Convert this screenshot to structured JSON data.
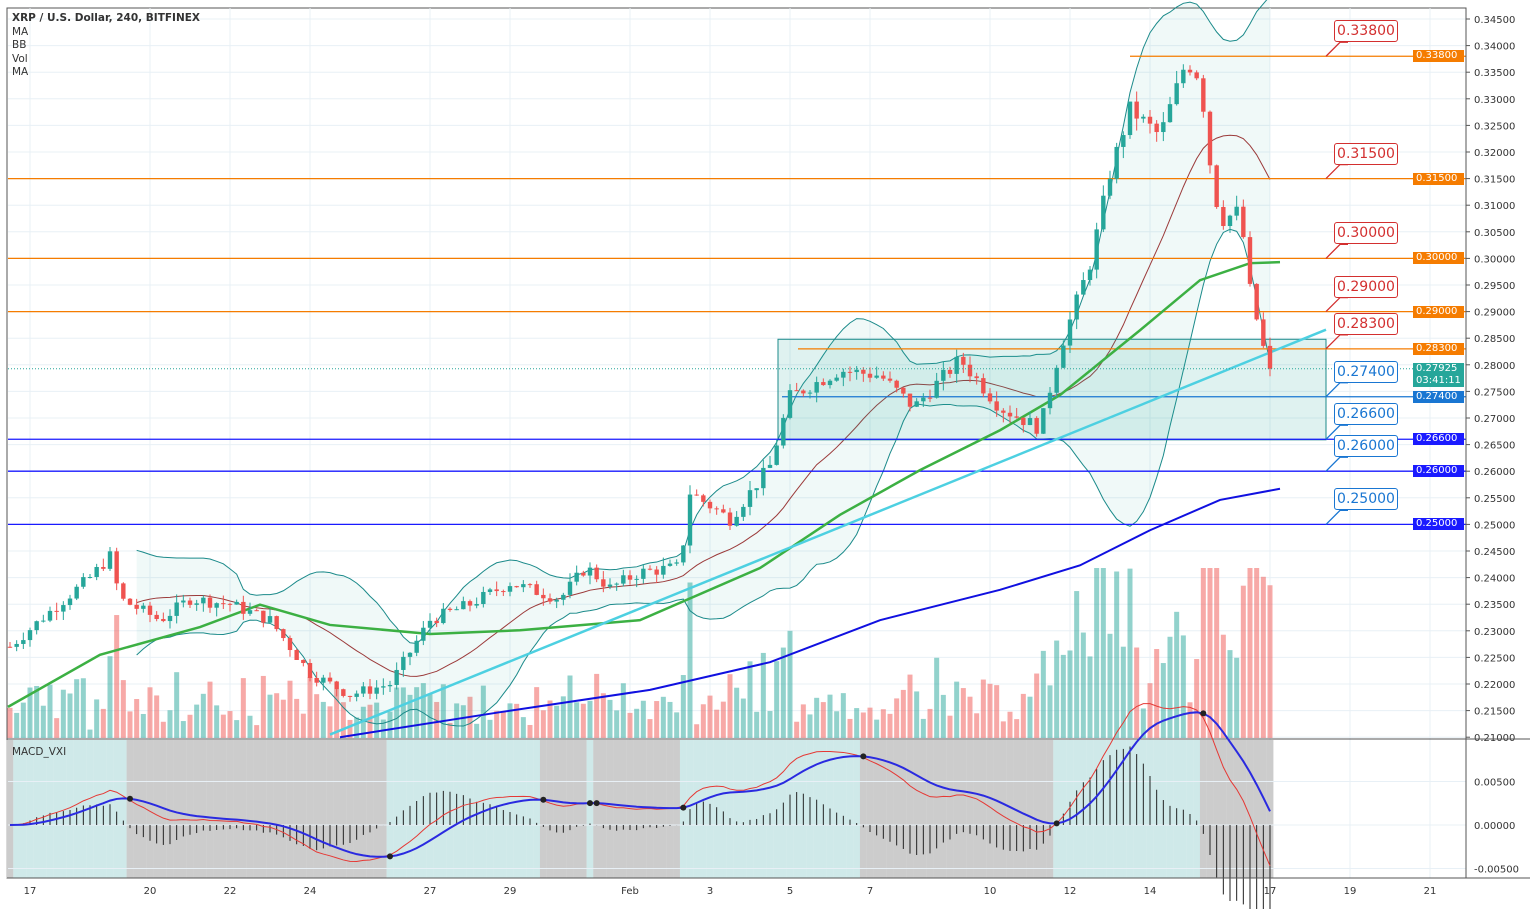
{
  "legend": {
    "title": "XRP / U.S. Dollar, 240, BITFINEX",
    "items": [
      "MA",
      "BB",
      "Vol",
      "MA"
    ]
  },
  "macd_title": "MACD_VXI",
  "colors": {
    "up": "#26a69a",
    "down": "#ef5350",
    "orange": "#f57c00",
    "blue": "#1976d2",
    "navy": "#1a1aff",
    "ma50": "#3cb043",
    "ma200": "#1010e0",
    "trend": "#4dd0e1",
    "bb": "#1b8a8a"
  },
  "levels": [
    {
      "label": "0.33800",
      "value": 0.338,
      "kind": "orange",
      "fromDay": 27.5
    },
    {
      "label": "0.31500",
      "value": 0.315,
      "kind": "orange",
      "fromDay": -1
    },
    {
      "label": "0.30000",
      "value": 0.3,
      "kind": "orange",
      "fromDay": -1
    },
    {
      "label": "0.29000",
      "value": 0.29,
      "kind": "orange",
      "fromDay": -1
    },
    {
      "label": "0.28300",
      "value": 0.283,
      "kind": "orange",
      "fromDay": 19.2
    },
    {
      "label": "0.27400",
      "value": 0.274,
      "kind": "blue",
      "fromDay": 18.8
    },
    {
      "label": "0.26600",
      "value": 0.266,
      "kind": "navy",
      "fromDay": -1
    },
    {
      "label": "0.26000",
      "value": 0.26,
      "kind": "navy",
      "fromDay": -1
    },
    {
      "label": "0.25000",
      "value": 0.25,
      "kind": "navy",
      "fromDay": -1
    }
  ],
  "last_price": {
    "label": "0.27925",
    "value": 0.27925,
    "countdown": "03:41:11"
  },
  "chart_data": {
    "type": "candlestick",
    "title": "XRP / U.S. Dollar, 240, BITFINEX",
    "ylim": [
      0.21,
      0.345
    ],
    "yticks": [
      "0.34500",
      "0.34000",
      "0.33500",
      "0.33000",
      "0.32500",
      "0.32000",
      "0.31500",
      "0.31000",
      "0.30500",
      "0.30000",
      "0.29500",
      "0.29000",
      "0.28500",
      "0.28000",
      "0.27500",
      "0.27000",
      "0.26500",
      "0.26000",
      "0.25500",
      "0.25000",
      "0.24500",
      "0.24000",
      "0.23500",
      "0.23000",
      "0.22500",
      "0.22000",
      "0.21500",
      "0.21000"
    ],
    "xticks": [
      {
        "label": "17",
        "day": 0
      },
      {
        "label": "20",
        "day": 3
      },
      {
        "label": "22",
        "day": 5
      },
      {
        "label": "24",
        "day": 7
      },
      {
        "label": "27",
        "day": 10
      },
      {
        "label": "29",
        "day": 12
      },
      {
        "label": "Feb",
        "day": 15
      },
      {
        "label": "3",
        "day": 17
      },
      {
        "label": "5",
        "day": 19
      },
      {
        "label": "7",
        "day": 21
      },
      {
        "label": "10",
        "day": 24
      },
      {
        "label": "12",
        "day": 26
      },
      {
        "label": "14",
        "day": 28
      },
      {
        "label": "17",
        "day": 31
      },
      {
        "label": "19",
        "day": 33
      },
      {
        "label": "21",
        "day": 35
      }
    ],
    "price_path": [
      [
        -0.5,
        0.227
      ],
      [
        0.25,
        0.232
      ],
      [
        1.5,
        0.24
      ],
      [
        2,
        0.244
      ],
      [
        2.25,
        0.236
      ],
      [
        3.25,
        0.232
      ],
      [
        4,
        0.236
      ],
      [
        5,
        0.235
      ],
      [
        6,
        0.232
      ],
      [
        7,
        0.222
      ],
      [
        8,
        0.218
      ],
      [
        9,
        0.22
      ],
      [
        10,
        0.232
      ],
      [
        11,
        0.235
      ],
      [
        12,
        0.239
      ],
      [
        13.25,
        0.236
      ],
      [
        13.9,
        0.242
      ],
      [
        14.5,
        0.238
      ],
      [
        15.25,
        0.241
      ],
      [
        16.25,
        0.242
      ],
      [
        16.5,
        0.256
      ],
      [
        17.5,
        0.251
      ],
      [
        18.5,
        0.261
      ],
      [
        19,
        0.274
      ],
      [
        20.25,
        0.279
      ],
      [
        21.25,
        0.278
      ],
      [
        22.1,
        0.272
      ],
      [
        23.25,
        0.281
      ],
      [
        24.25,
        0.272
      ],
      [
        25.25,
        0.268
      ],
      [
        25.75,
        0.283
      ],
      [
        26.5,
        0.299
      ],
      [
        27,
        0.316
      ],
      [
        27.5,
        0.328
      ],
      [
        28.25,
        0.323
      ],
      [
        28.9,
        0.337
      ],
      [
        29.25,
        0.334
      ],
      [
        29.5,
        0.318
      ],
      [
        29.75,
        0.307
      ],
      [
        30.25,
        0.309
      ],
      [
        30.5,
        0.294
      ],
      [
        30.9,
        0.281
      ],
      [
        31.1,
        0.27925
      ]
    ],
    "ma_fast": [
      [
        -0.55,
        0.2157
      ],
      [
        1.75,
        0.2255
      ],
      [
        4.25,
        0.2307
      ],
      [
        5.75,
        0.2349
      ],
      [
        7.5,
        0.2311
      ],
      [
        10,
        0.2294
      ],
      [
        12.25,
        0.2301
      ],
      [
        15.25,
        0.232
      ],
      [
        18.25,
        0.2418
      ],
      [
        20.25,
        0.2518
      ],
      [
        22.25,
        0.2602
      ],
      [
        24.25,
        0.2677
      ],
      [
        25.75,
        0.2743
      ],
      [
        27.75,
        0.2865
      ],
      [
        29.25,
        0.2959
      ],
      [
        30.5,
        0.2991
      ],
      [
        31.25,
        0.2993
      ]
    ],
    "ma_slow": [
      [
        7.75,
        0.21
      ],
      [
        11.75,
        0.2147
      ],
      [
        15.5,
        0.2189
      ],
      [
        18.5,
        0.2241
      ],
      [
        21.25,
        0.232
      ],
      [
        24.25,
        0.2377
      ],
      [
        26.25,
        0.2423
      ],
      [
        28,
        0.2489
      ],
      [
        29.75,
        0.2546
      ],
      [
        31.25,
        0.2567
      ]
    ],
    "trendline": [
      [
        7.5,
        0.2105
      ],
      [
        32.4,
        0.2866
      ]
    ],
    "box": {
      "from_day": 18.7,
      "to_day": 32.4,
      "top": 0.2848,
      "bottom": 0.2659
    },
    "macd_ticks": [
      "0.00500",
      "0.00000",
      "-0.00500"
    ],
    "macd_ylim": [
      -0.0065,
      0.0095
    ]
  }
}
